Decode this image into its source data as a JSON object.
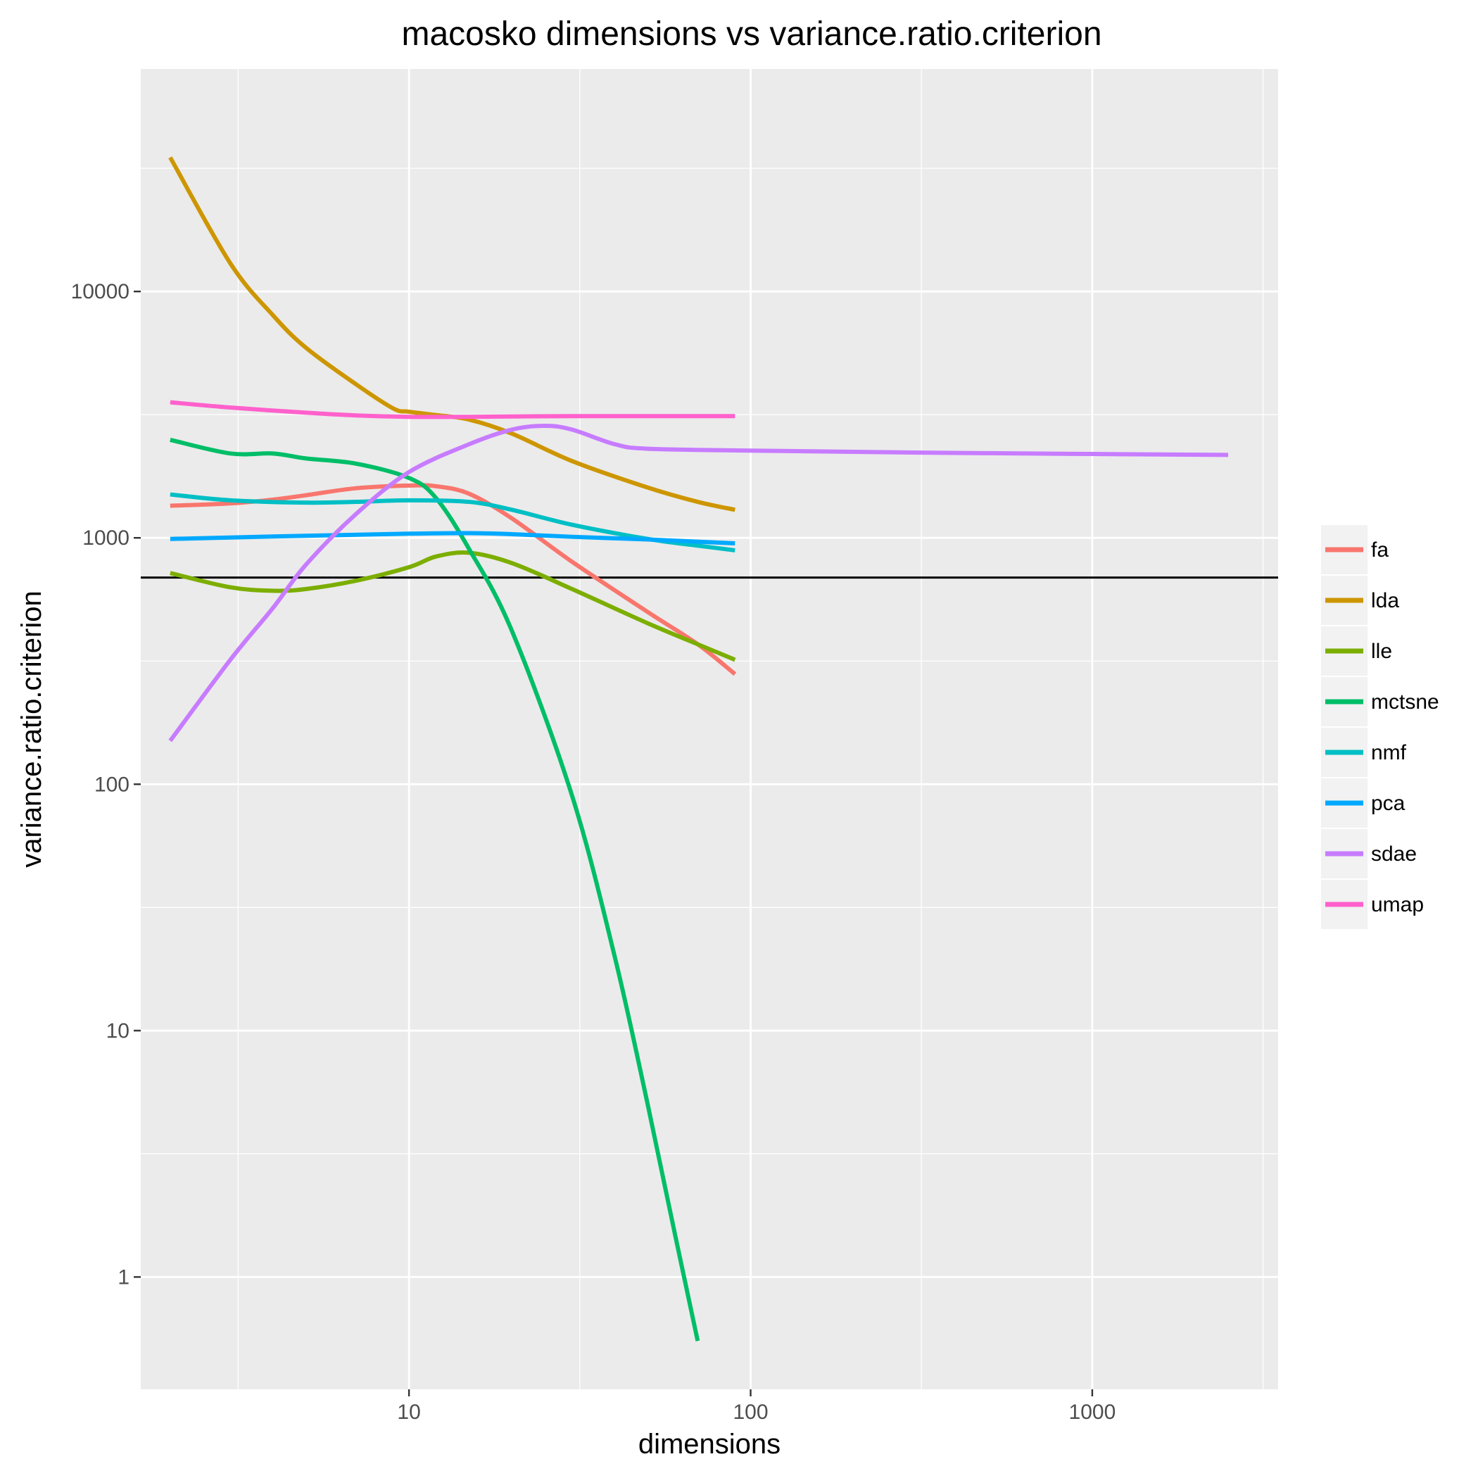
{
  "chart_data": {
    "type": "line",
    "title": "macosko dimensions vs variance.ratio.criterion",
    "xlabel": "dimensions",
    "ylabel": "variance.ratio.criterion",
    "x_scale": "log10",
    "y_scale": "log10",
    "xlim": [
      1.64,
      3500
    ],
    "ylim": [
      0.35,
      80000
    ],
    "x_ticks": [
      10,
      100,
      1000
    ],
    "x_tick_labels": [
      "10",
      "100",
      "1000"
    ],
    "y_ticks": [
      1,
      10,
      100,
      1000,
      10000
    ],
    "y_tick_labels": [
      "1",
      "10",
      "100",
      "1000",
      "10000"
    ],
    "grid": true,
    "legend_position": "right",
    "reference_line": {
      "y": 690,
      "color": "#000000"
    },
    "series": [
      {
        "name": "fa",
        "color": "#F8766D",
        "x": [
          2,
          3,
          4,
          5,
          7,
          10,
          12,
          15,
          20,
          30,
          50,
          70,
          90
        ],
        "y": [
          1350,
          1380,
          1430,
          1490,
          1590,
          1630,
          1620,
          1510,
          1200,
          800,
          500,
          370,
          280
        ]
      },
      {
        "name": "lda",
        "color": "#CD9600",
        "x": [
          2,
          3,
          4,
          5,
          7,
          9,
          10,
          12,
          15,
          20,
          30,
          50,
          70,
          90
        ],
        "y": [
          35000,
          13000,
          8000,
          5900,
          4200,
          3350,
          3250,
          3150,
          3020,
          2650,
          2050,
          1600,
          1400,
          1300
        ]
      },
      {
        "name": "lle",
        "color": "#7CAE00",
        "x": [
          2,
          3,
          4,
          5,
          7,
          10,
          12,
          15,
          20,
          30,
          50,
          70,
          90
        ],
        "y": [
          720,
          630,
          610,
          620,
          670,
          760,
          840,
          870,
          790,
          620,
          450,
          370,
          320
        ]
      },
      {
        "name": "mctsne",
        "color": "#00BE67",
        "x": [
          2,
          3,
          4,
          5,
          7,
          10,
          12,
          15,
          20,
          30,
          40,
          50,
          60,
          70
        ],
        "y": [
          2500,
          2200,
          2200,
          2100,
          2000,
          1750,
          1450,
          900,
          420,
          90,
          20,
          5,
          1.5,
          0.55
        ]
      },
      {
        "name": "nmf",
        "color": "#00BFC4",
        "x": [
          2,
          3,
          5,
          7,
          10,
          15,
          20,
          30,
          50,
          70,
          90
        ],
        "y": [
          1500,
          1420,
          1390,
          1400,
          1420,
          1400,
          1300,
          1130,
          990,
          930,
          890
        ]
      },
      {
        "name": "pca",
        "color": "#00A9FF",
        "x": [
          2,
          5,
          10,
          15,
          20,
          30,
          50,
          70,
          90
        ],
        "y": [
          990,
          1020,
          1040,
          1045,
          1035,
          1010,
          985,
          965,
          950
        ]
      },
      {
        "name": "sdae",
        "color": "#C77CFF",
        "x": [
          2,
          3,
          4,
          5,
          7,
          10,
          15,
          20,
          25,
          30,
          40,
          50,
          100,
          300,
          1000,
          2500
        ],
        "y": [
          150,
          320,
          520,
          780,
          1250,
          1850,
          2400,
          2750,
          2850,
          2750,
          2400,
          2300,
          2260,
          2220,
          2190,
          2170
        ]
      },
      {
        "name": "umap",
        "color": "#FF61CC",
        "x": [
          2,
          3,
          5,
          7,
          10,
          15,
          20,
          30,
          50,
          70,
          90
        ],
        "y": [
          3550,
          3380,
          3220,
          3140,
          3100,
          3100,
          3110,
          3120,
          3120,
          3120,
          3120
        ]
      }
    ]
  }
}
